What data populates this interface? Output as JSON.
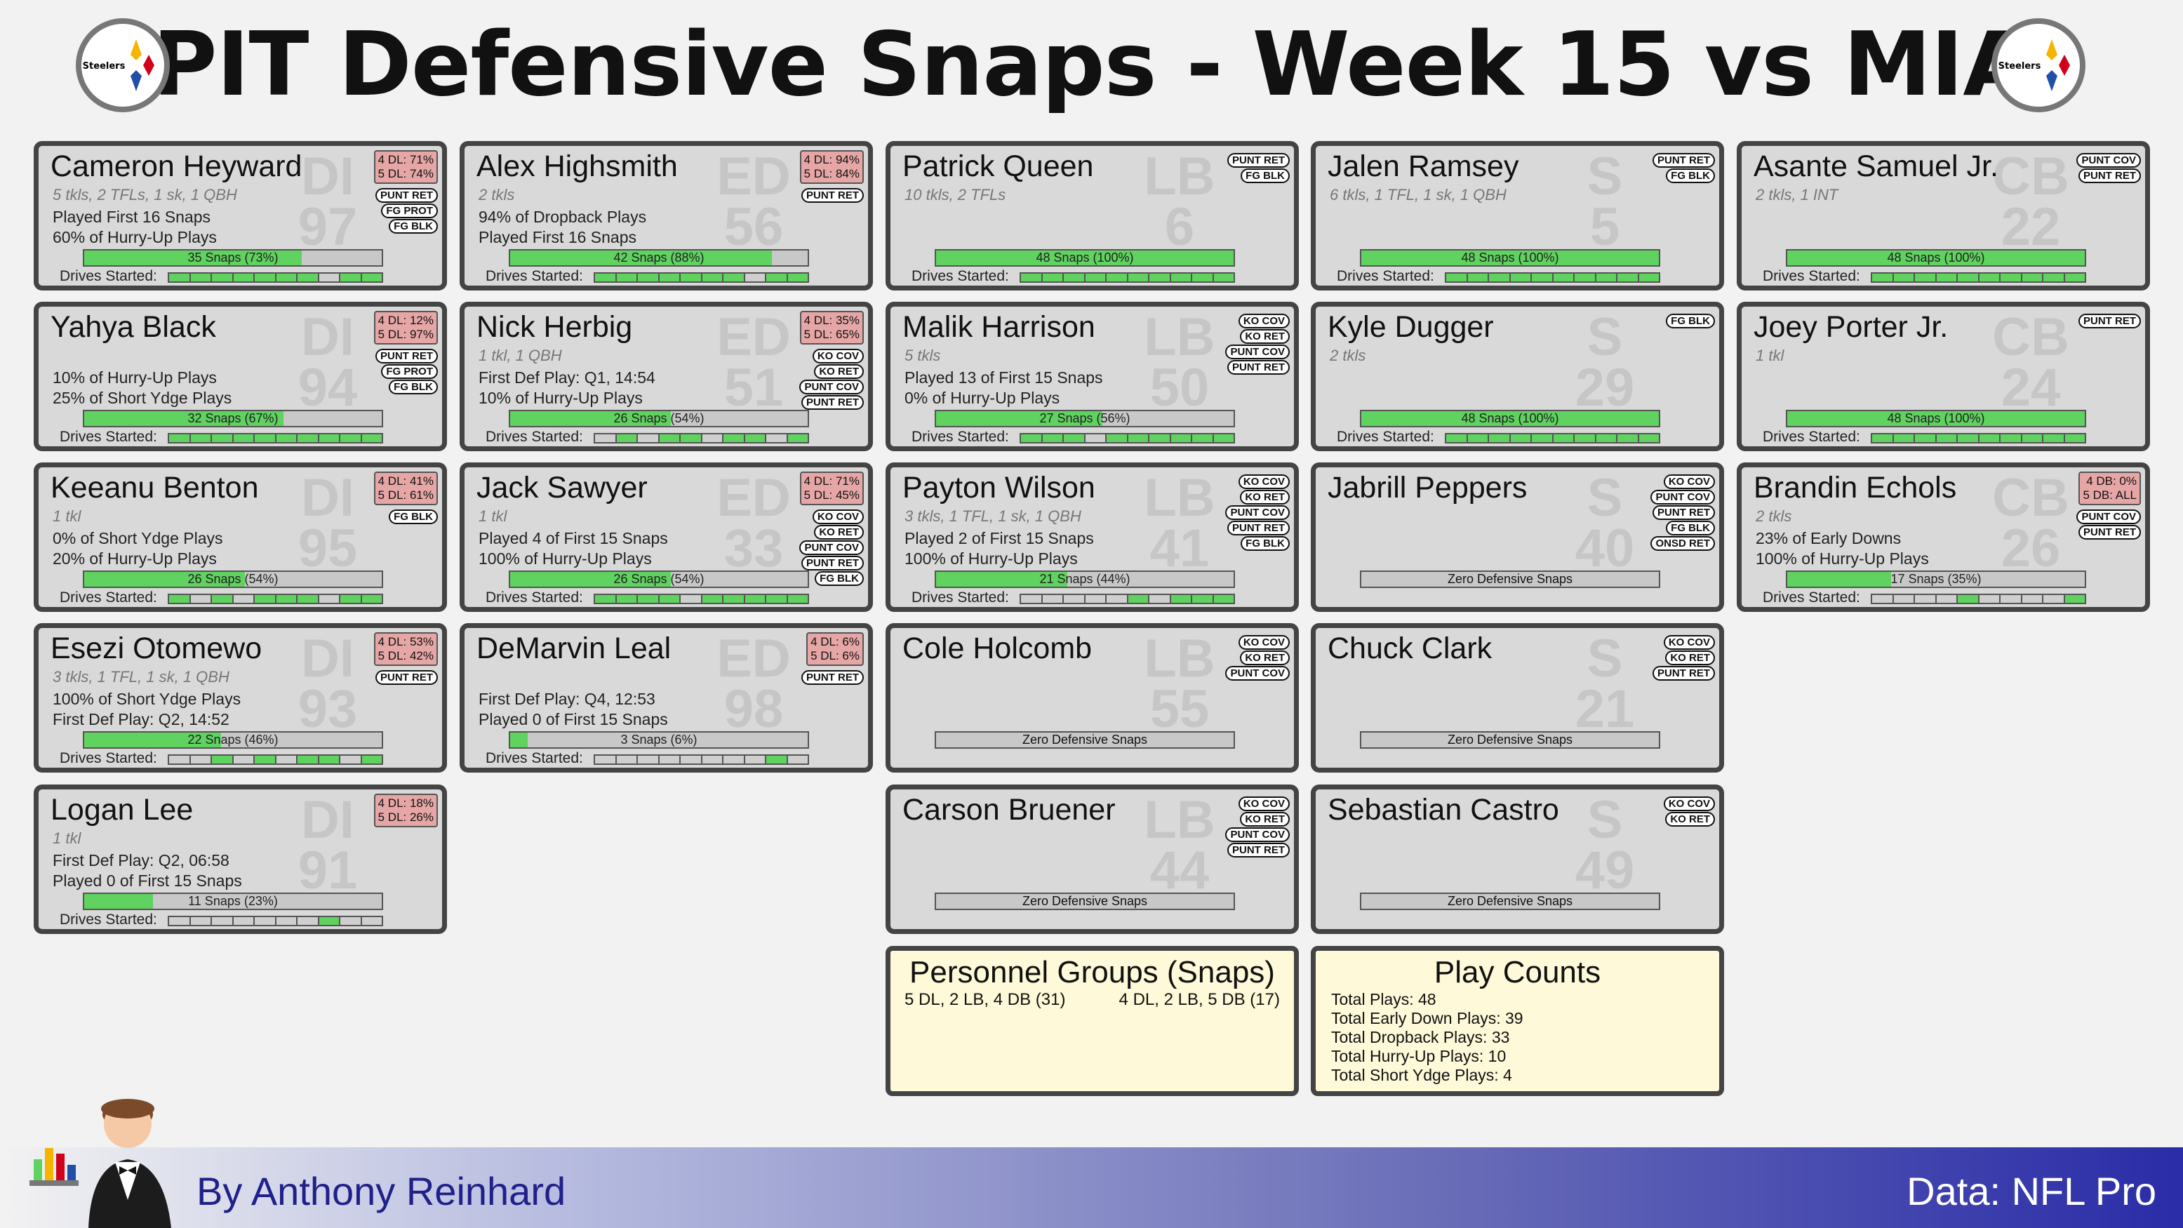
{
  "title": "PIT Defensive Snaps - Week 15 vs MIA",
  "logo_text": "Steelers",
  "footer": {
    "byline": "By Anthony Reinhard",
    "credit": "Data: NFL Pro"
  },
  "colors": {
    "snap_fill": "#5fd25f",
    "card_bg": "#d9d9d9",
    "personnel_box": "#e6a6a6",
    "info_box": "#fef9d8",
    "title": "#111111"
  },
  "players": [
    {
      "name": "Cameron Heyward",
      "pos": "DI",
      "num": "97",
      "stats": "5 tkls, 2 TFLs, 1 sk, 1 QBH",
      "line1": "Played First 16 Snaps",
      "line2": "60% of Hurry-Up Plays",
      "snaps_label": "35 Snaps (73%)",
      "snap_pct": 73,
      "drives": [
        1,
        1,
        1,
        1,
        1,
        1,
        1,
        0,
        1,
        1
      ],
      "personnel": [
        "4 DL: 71%",
        "5 DL: 74%"
      ],
      "tags": [
        "PUNT RET",
        "FG PROT",
        "FG BLK"
      ]
    },
    {
      "name": "Yahya Black",
      "pos": "DI",
      "num": "94",
      "stats": "",
      "line1": "10% of Hurry-Up Plays",
      "line2": "25% of Short Ydge Plays",
      "snaps_label": "32 Snaps (67%)",
      "snap_pct": 67,
      "drives": [
        1,
        1,
        1,
        1,
        1,
        1,
        1,
        1,
        1,
        1
      ],
      "personnel": [
        "4 DL: 12%",
        "5 DL: 97%"
      ],
      "tags": [
        "PUNT RET",
        "FG PROT",
        "FG BLK"
      ]
    },
    {
      "name": "Keeanu Benton",
      "pos": "DI",
      "num": "95",
      "stats": "1 tkl",
      "line1": "0% of Short Ydge Plays",
      "line2": "20% of Hurry-Up Plays",
      "snaps_label": "26 Snaps (54%)",
      "snap_pct": 54,
      "drives": [
        1,
        0,
        1,
        0,
        1,
        1,
        1,
        0,
        1,
        1
      ],
      "personnel": [
        "4 DL: 41%",
        "5 DL: 61%"
      ],
      "tags": [
        "FG BLK"
      ]
    },
    {
      "name": "Esezi Otomewo",
      "pos": "DI",
      "num": "93",
      "stats": "3 tkls, 1 TFL, 1 sk, 1 QBH",
      "line1": "100% of Short Ydge Plays",
      "line2": "First Def Play: Q2, 14:52",
      "snaps_label": "22 Snaps (46%)",
      "snap_pct": 46,
      "drives": [
        0,
        0,
        1,
        0,
        1,
        0,
        1,
        1,
        0,
        1
      ],
      "personnel": [
        "4 DL: 53%",
        "5 DL: 42%"
      ],
      "tags": [
        "PUNT RET"
      ]
    },
    {
      "name": "Logan Lee",
      "pos": "DI",
      "num": "91",
      "stats": "1 tkl",
      "line1": "First Def Play: Q2, 06:58",
      "line2": "Played 0 of First 15 Snaps",
      "snaps_label": "11 Snaps (23%)",
      "snap_pct": 23,
      "drives": [
        0,
        0,
        0,
        0,
        0,
        0,
        0,
        1,
        0,
        0
      ],
      "personnel": [
        "4 DL: 18%",
        "5 DL: 26%"
      ],
      "tags": []
    },
    {
      "name": "Alex Highsmith",
      "pos": "ED",
      "num": "56",
      "stats": "2 tkls",
      "line1": "94% of Dropback Plays",
      "line2": "Played First 16 Snaps",
      "snaps_label": "42 Snaps (88%)",
      "snap_pct": 88,
      "drives": [
        1,
        1,
        1,
        1,
        1,
        1,
        1,
        0,
        1,
        1
      ],
      "personnel": [
        "4 DL: 94%",
        "5 DL: 84%"
      ],
      "tags": [
        "PUNT RET"
      ]
    },
    {
      "name": "Nick Herbig",
      "pos": "ED",
      "num": "51",
      "stats": "1 tkl, 1 QBH",
      "line1": "First Def Play: Q1, 14:54",
      "line2": "10% of Hurry-Up Plays",
      "snaps_label": "26 Snaps (54%)",
      "snap_pct": 54,
      "drives": [
        0,
        1,
        0,
        1,
        1,
        0,
        1,
        1,
        0,
        1
      ],
      "personnel": [
        "4 DL: 35%",
        "5 DL: 65%"
      ],
      "tags": [
        "KO COV",
        "KO RET",
        "PUNT COV",
        "PUNT RET"
      ]
    },
    {
      "name": "Jack Sawyer",
      "pos": "ED",
      "num": "33",
      "stats": "1 tkl",
      "line1": "Played 4 of First 15 Snaps",
      "line2": "100% of Hurry-Up Plays",
      "snaps_label": "26 Snaps (54%)",
      "snap_pct": 54,
      "drives": [
        1,
        1,
        1,
        1,
        0,
        1,
        1,
        1,
        1,
        1
      ],
      "personnel": [
        "4 DL: 71%",
        "5 DL: 45%"
      ],
      "tags": [
        "KO COV",
        "KO RET",
        "PUNT COV",
        "PUNT RET",
        "FG BLK"
      ]
    },
    {
      "name": "DeMarvin Leal",
      "pos": "ED",
      "num": "98",
      "stats": "",
      "line1": "First Def Play: Q4, 12:53",
      "line2": "Played 0 of First 15 Snaps",
      "snaps_label": "3 Snaps (6%)",
      "snap_pct": 6,
      "drives": [
        0,
        0,
        0,
        0,
        0,
        0,
        0,
        0,
        1,
        0
      ],
      "personnel": [
        "4 DL:  6%",
        "5 DL:  6%"
      ],
      "tags": [
        "PUNT RET"
      ]
    },
    {
      "name": "Patrick Queen",
      "pos": "LB",
      "num": "6",
      "stats": "10 tkls, 2 TFLs",
      "line1": "",
      "line2": "",
      "snaps_label": "48 Snaps (100%)",
      "snap_pct": 100,
      "drives": [
        1,
        1,
        1,
        1,
        1,
        1,
        1,
        1,
        1,
        1
      ],
      "personnel": [],
      "tags": [
        "PUNT RET",
        "FG BLK"
      ]
    },
    {
      "name": "Malik Harrison",
      "pos": "LB",
      "num": "50",
      "stats": "5 tkls",
      "line1": "Played 13 of First 15 Snaps",
      "line2": "0% of Hurry-Up Plays",
      "snaps_label": "27 Snaps (56%)",
      "snap_pct": 56,
      "drives": [
        1,
        1,
        1,
        0,
        1,
        1,
        1,
        1,
        1,
        1
      ],
      "personnel": [],
      "tags": [
        "KO COV",
        "KO RET",
        "PUNT COV",
        "PUNT RET"
      ]
    },
    {
      "name": "Payton Wilson",
      "pos": "LB",
      "num": "41",
      "stats": "3 tkls, 1 TFL, 1 sk, 1 QBH",
      "line1": "Played 2 of First 15 Snaps",
      "line2": "100% of Hurry-Up Plays",
      "snaps_label": "21 Snaps (44%)",
      "snap_pct": 44,
      "drives": [
        0,
        0,
        0,
        0,
        0,
        1,
        0,
        1,
        1,
        1
      ],
      "personnel": [],
      "tags": [
        "KO COV",
        "KO RET",
        "PUNT COV",
        "PUNT RET",
        "FG BLK"
      ]
    },
    {
      "name": "Cole Holcomb",
      "pos": "LB",
      "num": "55",
      "stats": "",
      "line1": "",
      "line2": "",
      "snaps_label": "Zero Defensive Snaps",
      "snap_pct": 0,
      "zero": true,
      "drives": [],
      "personnel": [],
      "tags": [
        "KO COV",
        "KO RET",
        "PUNT COV"
      ]
    },
    {
      "name": "Carson Bruener",
      "pos": "LB",
      "num": "44",
      "stats": "",
      "line1": "",
      "line2": "",
      "snaps_label": "Zero Defensive Snaps",
      "snap_pct": 0,
      "zero": true,
      "drives": [],
      "personnel": [],
      "tags": [
        "KO COV",
        "KO RET",
        "PUNT COV",
        "PUNT RET"
      ]
    },
    {
      "name": "Jalen Ramsey",
      "pos": "S",
      "num": "5",
      "stats": "6 tkls, 1 TFL, 1 sk, 1 QBH",
      "line1": "",
      "line2": "",
      "snaps_label": "48 Snaps (100%)",
      "snap_pct": 100,
      "drives": [
        1,
        1,
        1,
        1,
        1,
        1,
        1,
        1,
        1,
        1
      ],
      "personnel": [],
      "tags": [
        "PUNT RET",
        "FG BLK"
      ]
    },
    {
      "name": "Kyle Dugger",
      "pos": "S",
      "num": "29",
      "stats": "2 tkls",
      "line1": "",
      "line2": "",
      "snaps_label": "48 Snaps (100%)",
      "snap_pct": 100,
      "drives": [
        1,
        1,
        1,
        1,
        1,
        1,
        1,
        1,
        1,
        1
      ],
      "personnel": [],
      "tags": [
        "FG BLK"
      ]
    },
    {
      "name": "Jabrill Peppers",
      "pos": "S",
      "num": "40",
      "stats": "",
      "line1": "",
      "line2": "",
      "snaps_label": "Zero Defensive Snaps",
      "snap_pct": 0,
      "zero": true,
      "drives": [],
      "personnel": [],
      "tags": [
        "KO COV",
        "PUNT COV",
        "PUNT RET",
        "FG BLK",
        "ONSD RET"
      ]
    },
    {
      "name": "Chuck Clark",
      "pos": "S",
      "num": "21",
      "stats": "",
      "line1": "",
      "line2": "",
      "snaps_label": "Zero Defensive Snaps",
      "snap_pct": 0,
      "zero": true,
      "drives": [],
      "personnel": [],
      "tags": [
        "KO COV",
        "KO RET",
        "PUNT RET"
      ]
    },
    {
      "name": "Sebastian Castro",
      "pos": "S",
      "num": "49",
      "stats": "",
      "line1": "",
      "line2": "",
      "snaps_label": "Zero Defensive Snaps",
      "snap_pct": 0,
      "zero": true,
      "drives": [],
      "personnel": [],
      "tags": [
        "KO COV",
        "KO RET"
      ]
    },
    {
      "name": "Asante Samuel Jr.",
      "pos": "CB",
      "num": "22",
      "stats": "2 tkls, 1 INT",
      "line1": "",
      "line2": "",
      "snaps_label": "48 Snaps (100%)",
      "snap_pct": 100,
      "drives": [
        1,
        1,
        1,
        1,
        1,
        1,
        1,
        1,
        1,
        1
      ],
      "personnel": [],
      "tags": [
        "PUNT COV",
        "PUNT RET"
      ]
    },
    {
      "name": "Joey Porter Jr.",
      "pos": "CB",
      "num": "24",
      "stats": "1 tkl",
      "line1": "",
      "line2": "",
      "snaps_label": "48 Snaps (100%)",
      "snap_pct": 100,
      "drives": [
        1,
        1,
        1,
        1,
        1,
        1,
        1,
        1,
        1,
        1
      ],
      "personnel": [],
      "tags": [
        "PUNT RET"
      ]
    },
    {
      "name": "Brandin Echols",
      "pos": "CB",
      "num": "26",
      "stats": "2 tkls",
      "line1": "23% of Early Downs",
      "line2": "100% of Hurry-Up Plays",
      "snaps_label": "17 Snaps (35%)",
      "snap_pct": 35,
      "drives": [
        0,
        0,
        0,
        0,
        1,
        0,
        0,
        0,
        0,
        1
      ],
      "personnel": [
        "4 DB:  0%",
        "5 DB: ALL"
      ],
      "tags": [
        "PUNT COV",
        "PUNT RET"
      ]
    }
  ],
  "drives_label": "Drives Started:",
  "personnel_groups": {
    "title": "Personnel Groups (Snaps)",
    "items": [
      "5 DL, 2 LB, 4 DB (31)",
      "4 DL, 2 LB, 5 DB (17)"
    ]
  },
  "play_counts": {
    "title": "Play Counts",
    "lines": [
      "Total Plays: 48",
      "Total Early Down Plays: 39",
      "Total Dropback Plays: 33",
      "Total Hurry-Up Plays: 10",
      "Total Short Ydge Plays: 4"
    ]
  }
}
